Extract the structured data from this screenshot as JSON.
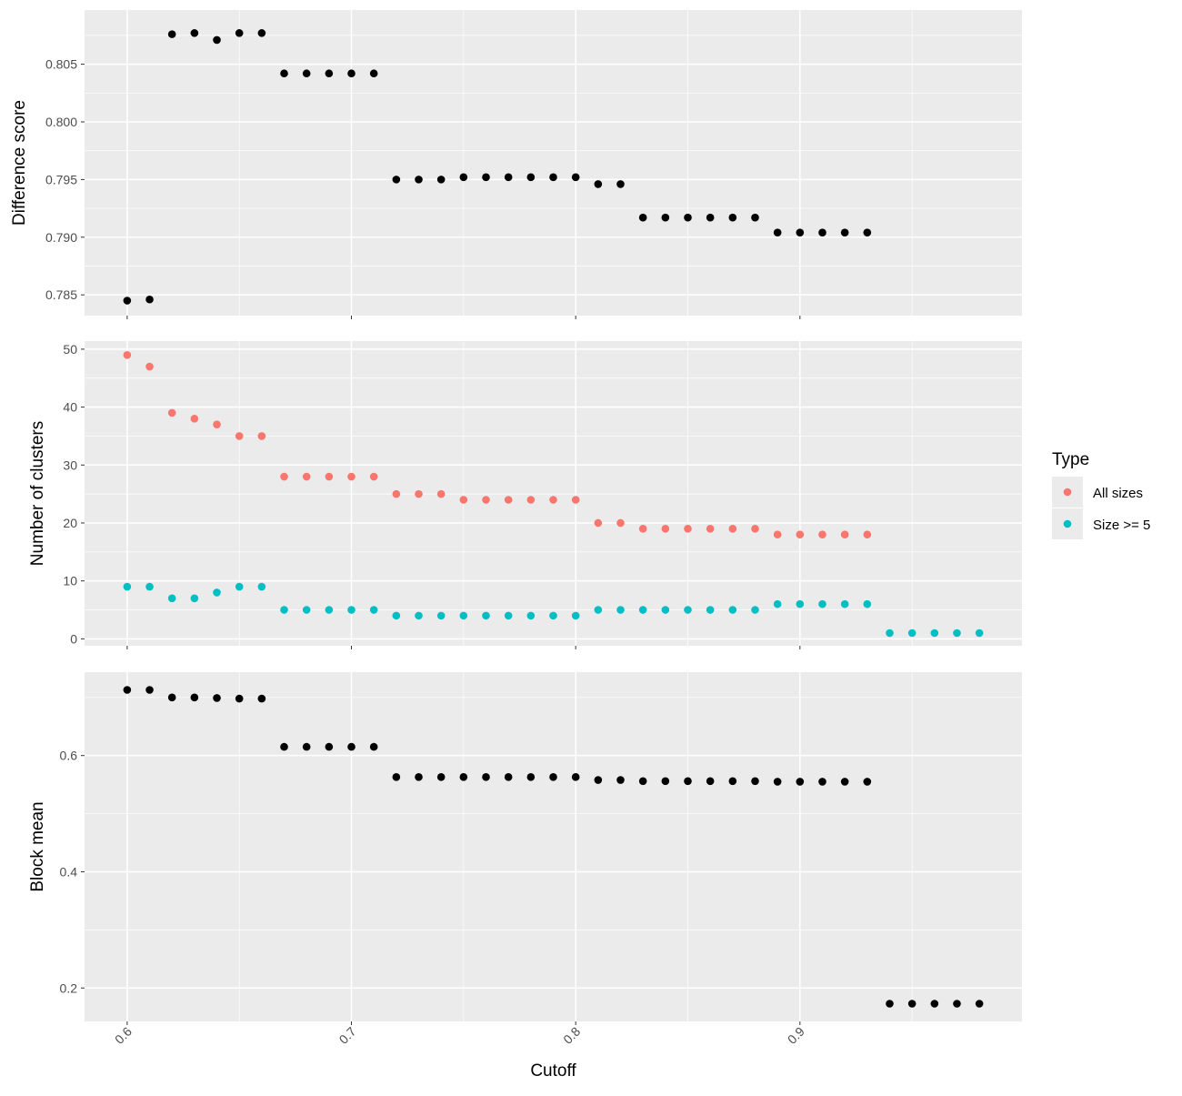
{
  "colors": {
    "panel_bg": "#EBEBEB",
    "grid": "#FFFFFF",
    "tick": "#333333",
    "all_sizes": "#F8766D",
    "size_ge_5": "#00BFC4",
    "black_points": "#000000"
  },
  "chart_data": [
    {
      "type": "scatter",
      "ylabel": "Difference score",
      "ylim": [
        0.7832,
        0.8097
      ],
      "y_ticks": [
        0.785,
        0.79,
        0.795,
        0.8,
        0.805
      ],
      "y_tick_labels": [
        "0.785",
        "0.790",
        "0.795",
        "0.800",
        "0.805"
      ],
      "series": [
        {
          "color": "#000000",
          "x": [
            0.6,
            0.61,
            0.62,
            0.63,
            0.64,
            0.65,
            0.66,
            0.67,
            0.68,
            0.69,
            0.7,
            0.71,
            0.72,
            0.73,
            0.74,
            0.75,
            0.76,
            0.77,
            0.78,
            0.79,
            0.8,
            0.81,
            0.82,
            0.83,
            0.84,
            0.85,
            0.86,
            0.87,
            0.88,
            0.89,
            0.9,
            0.91,
            0.92,
            0.93
          ],
          "y": [
            0.7845,
            0.7846,
            0.8076,
            0.8077,
            0.8071,
            0.8077,
            0.8077,
            0.8042,
            0.8042,
            0.8042,
            0.8042,
            0.8042,
            0.795,
            0.795,
            0.795,
            0.7952,
            0.7952,
            0.7952,
            0.7952,
            0.7952,
            0.7952,
            0.7946,
            0.7946,
            0.7917,
            0.7917,
            0.7917,
            0.7917,
            0.7917,
            0.7917,
            0.7904,
            0.7904,
            0.7904,
            0.7904,
            0.7904
          ]
        }
      ]
    },
    {
      "type": "scatter",
      "ylabel": "Number of clusters",
      "ylim": [
        -1.2,
        51.4
      ],
      "y_ticks": [
        0,
        10,
        20,
        30,
        40,
        50
      ],
      "y_tick_labels": [
        "0",
        "10",
        "20",
        "30",
        "40",
        "50"
      ],
      "legend": {
        "title": "Type",
        "position": "right",
        "entries": [
          "All sizes",
          "Size >= 5"
        ]
      },
      "series": [
        {
          "name": "All sizes",
          "color": "#F8766D",
          "x": [
            0.6,
            0.61,
            0.62,
            0.63,
            0.64,
            0.65,
            0.66,
            0.67,
            0.68,
            0.69,
            0.7,
            0.71,
            0.72,
            0.73,
            0.74,
            0.75,
            0.76,
            0.77,
            0.78,
            0.79,
            0.8,
            0.81,
            0.82,
            0.83,
            0.84,
            0.85,
            0.86,
            0.87,
            0.88,
            0.89,
            0.9,
            0.91,
            0.92,
            0.93
          ],
          "y": [
            49,
            47,
            39,
            38,
            37,
            35,
            35,
            28,
            28,
            28,
            28,
            28,
            25,
            25,
            25,
            24,
            24,
            24,
            24,
            24,
            24,
            20,
            20,
            19,
            19,
            19,
            19,
            19,
            19,
            18,
            18,
            18,
            18,
            18
          ]
        },
        {
          "name": "Size >= 5",
          "color": "#00BFC4",
          "x": [
            0.6,
            0.61,
            0.62,
            0.63,
            0.64,
            0.65,
            0.66,
            0.67,
            0.68,
            0.69,
            0.7,
            0.71,
            0.72,
            0.73,
            0.74,
            0.75,
            0.76,
            0.77,
            0.78,
            0.79,
            0.8,
            0.81,
            0.82,
            0.83,
            0.84,
            0.85,
            0.86,
            0.87,
            0.88,
            0.89,
            0.9,
            0.91,
            0.92,
            0.93,
            0.94,
            0.95,
            0.96,
            0.97,
            0.98
          ],
          "y": [
            9,
            9,
            7,
            7,
            8,
            9,
            9,
            5,
            5,
            5,
            5,
            5,
            4,
            4,
            4,
            4,
            4,
            4,
            4,
            4,
            4,
            5,
            5,
            5,
            5,
            5,
            5,
            5,
            5,
            6,
            6,
            6,
            6,
            6,
            1,
            1,
            1,
            1,
            1
          ]
        }
      ]
    },
    {
      "type": "scatter",
      "ylabel": "Block mean",
      "xlabel": "Cutoff",
      "ylim": [
        0.1425,
        0.7435
      ],
      "y_ticks": [
        0.2,
        0.4,
        0.6
      ],
      "y_tick_labels": [
        "0.2",
        "0.4",
        "0.6"
      ],
      "x_ticks": [
        0.6,
        0.7,
        0.8,
        0.9
      ],
      "x_tick_labels": [
        "0.6",
        "0.7",
        "0.8",
        "0.9"
      ],
      "series": [
        {
          "color": "#000000",
          "x": [
            0.6,
            0.61,
            0.62,
            0.63,
            0.64,
            0.65,
            0.66,
            0.67,
            0.68,
            0.69,
            0.7,
            0.71,
            0.72,
            0.73,
            0.74,
            0.75,
            0.76,
            0.77,
            0.78,
            0.79,
            0.8,
            0.81,
            0.82,
            0.83,
            0.84,
            0.85,
            0.86,
            0.87,
            0.88,
            0.89,
            0.9,
            0.91,
            0.92,
            0.93,
            0.94,
            0.95,
            0.96,
            0.97,
            0.98
          ],
          "y": [
            0.713,
            0.713,
            0.7,
            0.7,
            0.699,
            0.698,
            0.698,
            0.615,
            0.615,
            0.615,
            0.615,
            0.615,
            0.563,
            0.563,
            0.563,
            0.563,
            0.563,
            0.563,
            0.563,
            0.563,
            0.563,
            0.558,
            0.558,
            0.556,
            0.556,
            0.556,
            0.556,
            0.556,
            0.556,
            0.555,
            0.555,
            0.555,
            0.555,
            0.555,
            0.173,
            0.173,
            0.173,
            0.173,
            0.173
          ]
        }
      ]
    }
  ]
}
